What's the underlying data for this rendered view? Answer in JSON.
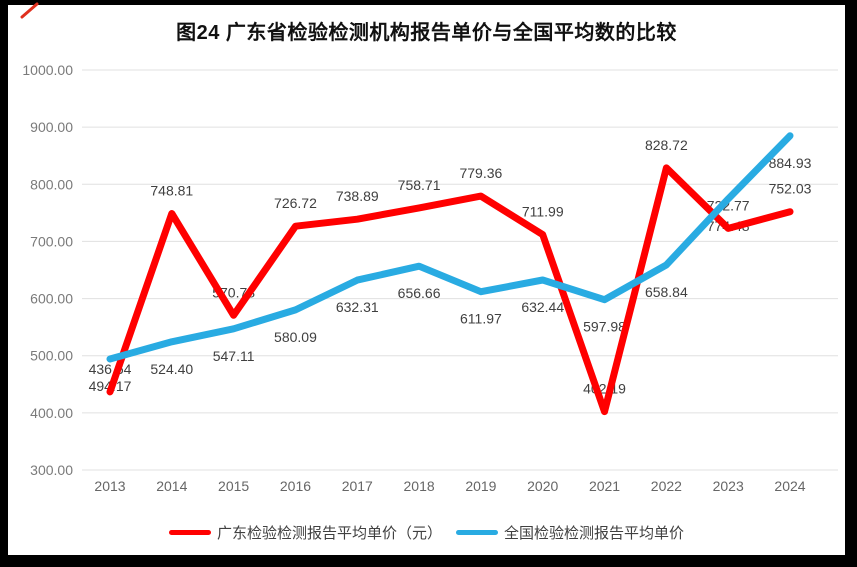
{
  "figure": {
    "title": "图24  广东省检验检测机构报告单价与全国平均数的比较"
  },
  "chart_data": {
    "type": "line",
    "title": "图24  广东省检验检测机构报告单价与全国平均数的比较",
    "categories": [
      "2013",
      "2014",
      "2015",
      "2016",
      "2017",
      "2018",
      "2019",
      "2020",
      "2021",
      "2022",
      "2023",
      "2024"
    ],
    "series": [
      {
        "name": "广东检验检测报告平均单价（元）",
        "color": "#FF0000",
        "label_side": "above",
        "values": [
          436.64,
          748.81,
          570.78,
          726.72,
          738.89,
          758.71,
          779.36,
          711.99,
          402.19,
          828.72,
          722.77,
          752.03
        ]
      },
      {
        "name": "全国检验检测报告平均单价",
        "color": "#29ABE2",
        "label_side": "below",
        "values": [
          494.17,
          524.4,
          547.11,
          580.09,
          632.31,
          656.66,
          611.97,
          632.44,
          597.98,
          658.84,
          774.48,
          884.93
        ]
      }
    ],
    "ylim": [
      300,
      1000
    ],
    "ytick_step": 100,
    "ytick_labels": [
      "300.00",
      "400.00",
      "500.00",
      "600.00",
      "700.00",
      "800.00",
      "900.00",
      "1000.00"
    ],
    "data_label_decimals": 2,
    "grid": "horizontal",
    "legend_position": "bottom",
    "colors": {
      "gridline": "#E0E0E0",
      "axis_text": "#7A7A7A",
      "data_label_text": "#404040",
      "title_text": "#111111",
      "border": "#000000",
      "pen_mark": "#E0301E"
    }
  }
}
